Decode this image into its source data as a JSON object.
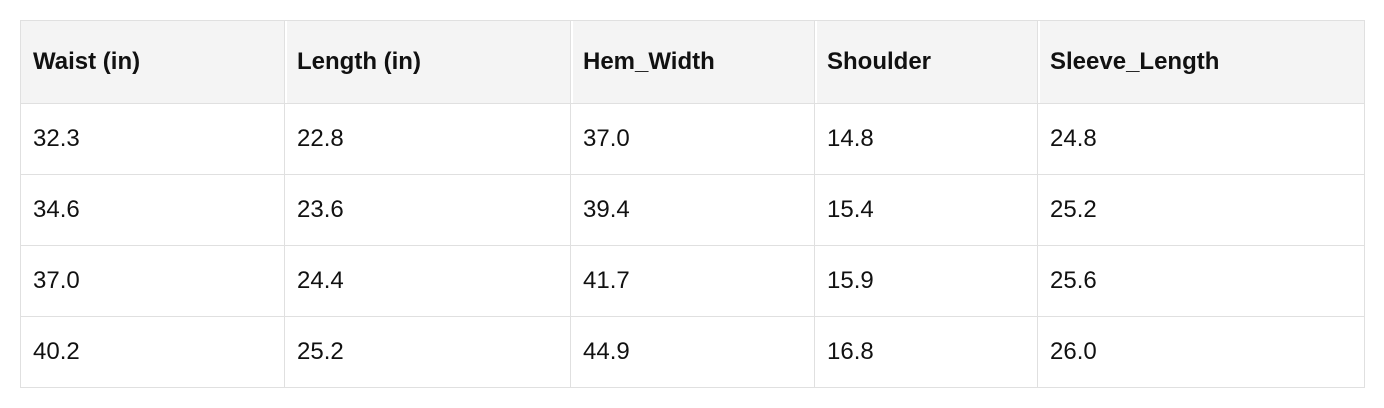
{
  "table": {
    "headers": [
      "Waist (in)",
      "Length (in)",
      "Hem_Width",
      "Shoulder",
      "Sleeve_Length"
    ],
    "rows": [
      [
        "32.3",
        "22.8",
        "37.0",
        "14.8",
        "24.8"
      ],
      [
        "34.6",
        "23.6",
        "39.4",
        "15.4",
        "25.2"
      ],
      [
        "37.0",
        "24.4",
        "41.7",
        "15.9",
        "25.6"
      ],
      [
        "40.2",
        "25.2",
        "44.9",
        "16.8",
        "26.0"
      ]
    ]
  }
}
